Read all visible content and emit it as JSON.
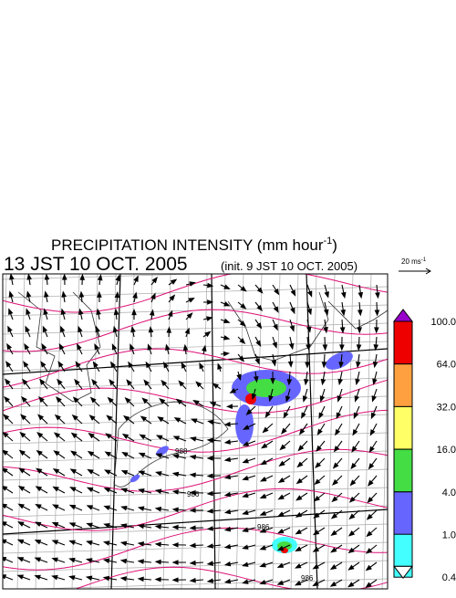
{
  "header": {
    "title": {
      "main": "PRECIPITATION INTENSITY (mm hour",
      "superscript": "-1",
      "close": ")"
    },
    "time": "13 JST 10 OCT. 2005",
    "init": "(init. 9 JST 10 OCT. 2005)"
  },
  "vector_key": {
    "label": "20 ms",
    "superscript": "-1"
  },
  "colorbar": {
    "labels": [
      "100.0",
      "64.0",
      "32.0",
      "16.0",
      "4.0",
      "1.0",
      "0.4"
    ],
    "colors": [
      "#9900cc",
      "#ee0000",
      "#ffa040",
      "#ffff66",
      "#44dd44",
      "#6666ff",
      "#44ffff",
      "#ffffff"
    ]
  },
  "isobar_labels": [
    "988",
    "986",
    "986",
    "986"
  ]
}
